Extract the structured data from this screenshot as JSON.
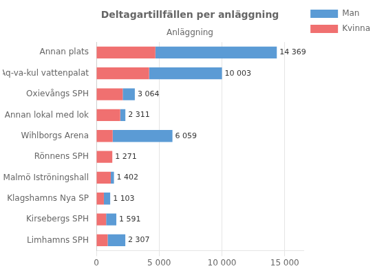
{
  "chart_data": {
    "type": "bar",
    "orientation": "horizontal",
    "stacked": true,
    "title": "Deltagartillfällen per anläggning",
    "subtitle": "Anläggning",
    "categories": [
      "Annan plats",
      "Aq-va-kul vattenpalat",
      "Oxievångs SPH",
      "Annan lokal med lok",
      "Wihlborgs Arena",
      "Rönnens SPH",
      "Malmö Iströningshall",
      "Klagshamns Nya SP",
      "Kirsebergs SPH",
      "Limhamns SPH"
    ],
    "series": [
      {
        "name": "Kvinna",
        "color": "#f07070",
        "values": [
          4700,
          4200,
          2100,
          1900,
          1300,
          1271,
          1150,
          600,
          780,
          900
        ]
      },
      {
        "name": "Man",
        "color": "#5b9bd5",
        "values": [
          9669,
          5803,
          964,
          411,
          4759,
          0,
          252,
          503,
          811,
          1407
        ]
      }
    ],
    "totals": [
      14369,
      10003,
      3064,
      2311,
      6059,
      1271,
      1402,
      1103,
      1591,
      2307
    ],
    "total_labels": [
      "14 369",
      "10 003",
      "3 064",
      "2 311",
      "6 059",
      "1 271",
      "1 402",
      "1 103",
      "1 591",
      "2 307"
    ],
    "xlim": [
      0,
      16500
    ],
    "xticks": [
      0,
      {
        "value": 5000,
        "label": "5 000"
      },
      {
        "value": 10000,
        "label": "10 000"
      },
      {
        "value": 15000,
        "label": "15 000"
      }
    ],
    "grid": true,
    "legend": "right"
  }
}
